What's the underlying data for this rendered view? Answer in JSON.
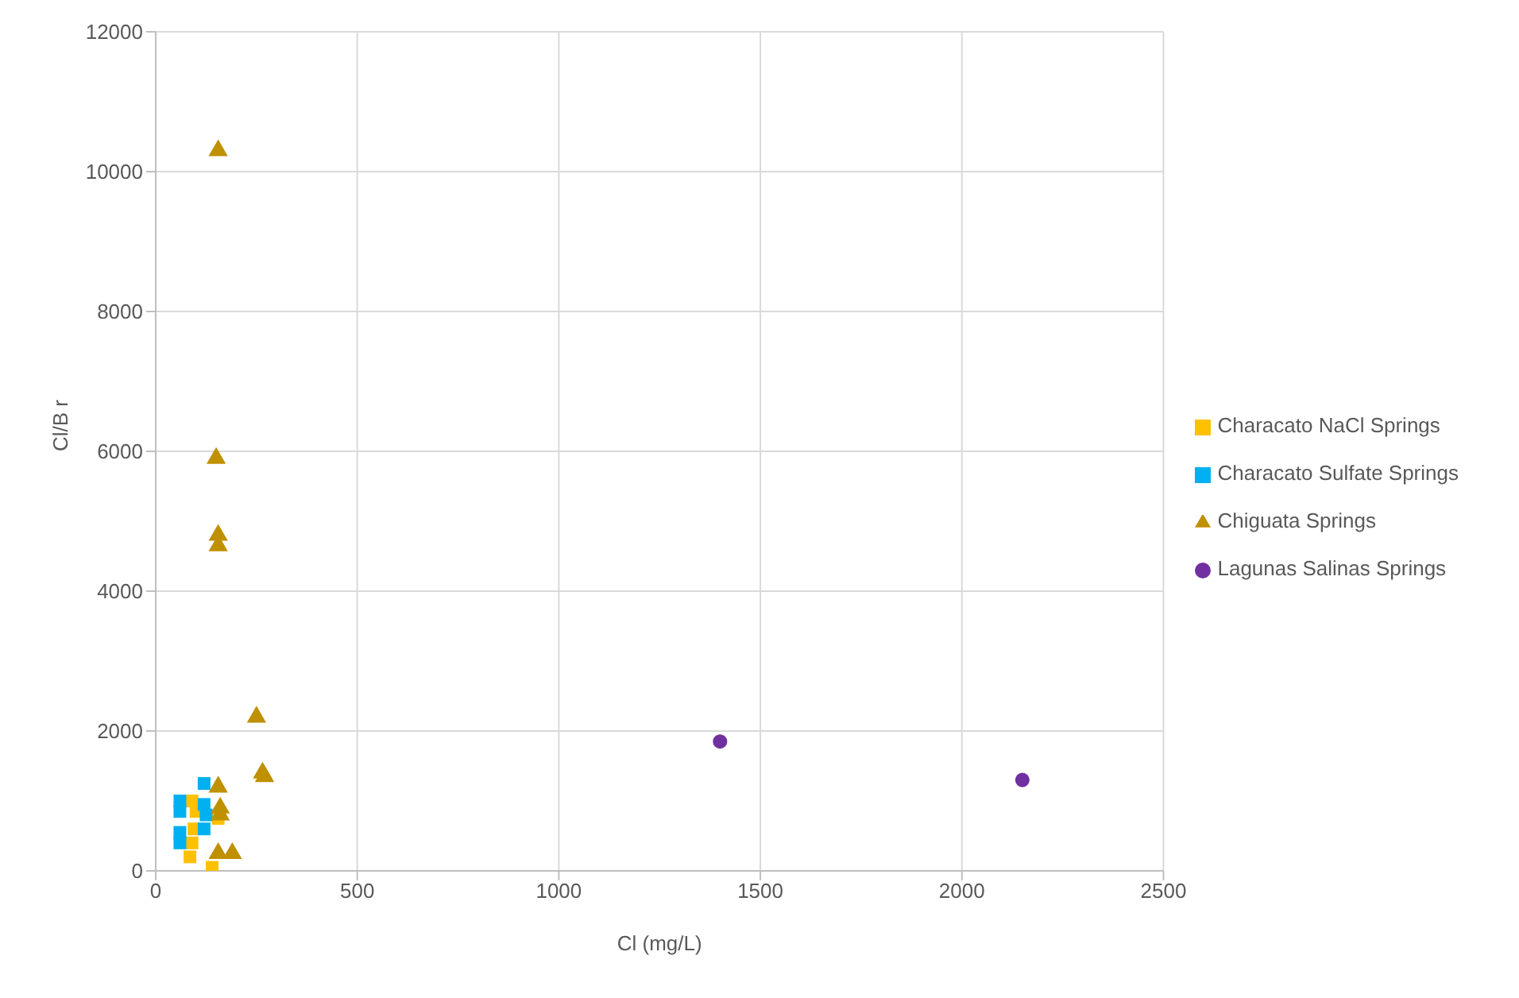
{
  "chart_data": {
    "type": "scatter",
    "xlabel": "Cl (mg/L)",
    "ylabel": "Cl/B r",
    "xlim": [
      0,
      2500
    ],
    "xticks": [
      0,
      500,
      1000,
      1500,
      2000,
      2500
    ],
    "ylim": [
      0,
      12000
    ],
    "yticks": [
      0,
      2000,
      4000,
      6000,
      8000,
      10000,
      12000
    ],
    "grid": true,
    "legend": "right",
    "series": [
      {
        "name": "Characato NaCl Springs",
        "color": "#ffc000",
        "marker": "square",
        "x": [
          90,
          95,
          85,
          140,
          155,
          100,
          90
        ],
        "values": [
          1000,
          600,
          200,
          50,
          750,
          850,
          400
        ]
      },
      {
        "name": "Characato Sulfate Springs",
        "color": "#00b0f0",
        "marker": "square",
        "x": [
          60,
          60,
          60,
          60,
          120,
          120,
          120,
          125
        ],
        "values": [
          1000,
          850,
          550,
          400,
          1250,
          950,
          600,
          800
        ]
      },
      {
        "name": "Chiguata Springs",
        "color": "#bf9000",
        "marker": "triangle",
        "x": [
          155,
          150,
          155,
          155,
          250,
          270,
          265,
          155,
          160,
          160,
          155,
          190
        ],
        "values": [
          10300,
          5900,
          4800,
          4650,
          2200,
          1350,
          1400,
          1200,
          900,
          800,
          250,
          250
        ]
      },
      {
        "name": "Lagunas Salinas Springs",
        "color": "#7030a0",
        "marker": "circle",
        "x": [
          1400,
          2150
        ],
        "values": [
          1850,
          1300
        ]
      }
    ]
  }
}
